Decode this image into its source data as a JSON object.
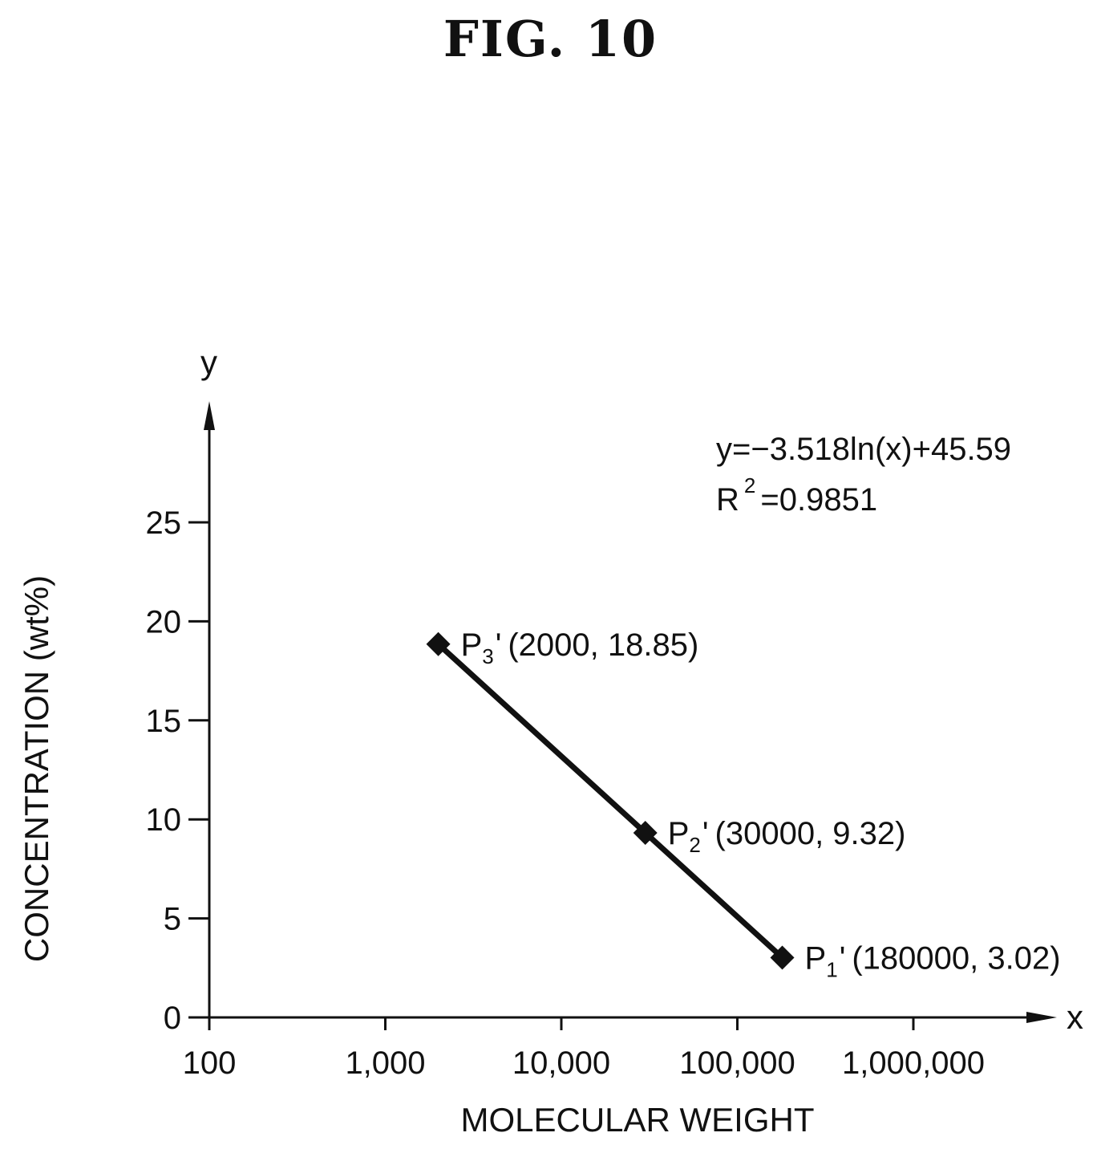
{
  "figure": {
    "title": "FIG. 10"
  },
  "chart_data": {
    "type": "scatter",
    "x_scale": "log",
    "xlabel": "MOLECULAR WEIGHT",
    "ylabel": "CONCENTRATION (wt%)",
    "x_axis_symbol": "x",
    "y_axis_symbol": "y",
    "xlim": [
      100,
      4000000
    ],
    "ylim": [
      0,
      30
    ],
    "grid": false,
    "x_ticks": [
      {
        "value": 100,
        "label": "100"
      },
      {
        "value": 1000,
        "label": "1,000"
      },
      {
        "value": 10000,
        "label": "10,000"
      },
      {
        "value": 100000,
        "label": "100,000"
      },
      {
        "value": 1000000,
        "label": "1,000,000"
      }
    ],
    "y_ticks": [
      {
        "value": 0,
        "label": "0"
      },
      {
        "value": 5,
        "label": "5"
      },
      {
        "value": 10,
        "label": "10"
      },
      {
        "value": 15,
        "label": "15"
      },
      {
        "value": 20,
        "label": "20"
      },
      {
        "value": 25,
        "label": "25"
      }
    ],
    "points": [
      {
        "name": "P",
        "sub": "3",
        "prime": "'",
        "coords": "(2000, 18.85)",
        "x": 2000,
        "y": 18.85
      },
      {
        "name": "P",
        "sub": "2",
        "prime": "'",
        "coords": "(30000, 9.32)",
        "x": 30000,
        "y": 9.32
      },
      {
        "name": "P",
        "sub": "1",
        "prime": "'",
        "coords": "(180000, 3.02)",
        "x": 180000,
        "y": 3.02
      }
    ],
    "trendline": {
      "type": "logarithmic",
      "a": -3.518,
      "b": 45.59,
      "x_range": [
        2000,
        180000
      ],
      "equation": "y=−3.518ln(x)+45.59",
      "r2_prefix": "R",
      "r2_exp": "2",
      "r2_value": "=0.9851"
    },
    "colors": {
      "ink": "#111111"
    }
  }
}
